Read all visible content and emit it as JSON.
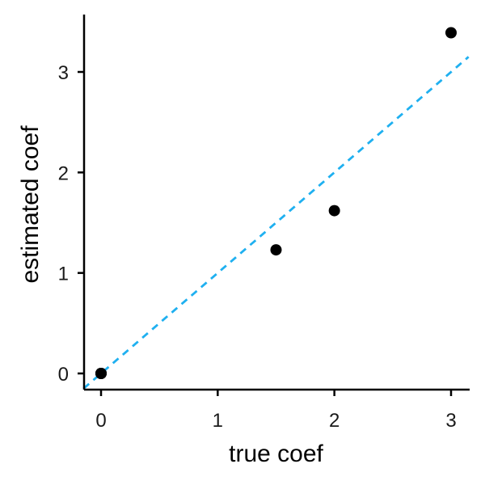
{
  "chart_data": {
    "type": "scatter",
    "title": "",
    "xlabel": "true coef",
    "ylabel": "estimated coef",
    "xlim": [
      -0.15,
      3.15
    ],
    "ylim": [
      -0.15,
      3.58
    ],
    "xticks": [
      0,
      1,
      2,
      3
    ],
    "xtick_labels": [
      "0",
      "1",
      "2",
      "3"
    ],
    "yticks": [
      0,
      1,
      2,
      3
    ],
    "ytick_labels": [
      "0",
      "1",
      "2",
      "3"
    ],
    "grid": false,
    "legend": "none",
    "points": [
      {
        "x": 0,
        "y": 0
      },
      {
        "x": 0,
        "y": 0
      },
      {
        "x": 0,
        "y": 0
      },
      {
        "x": 1.5,
        "y": 1.23
      },
      {
        "x": 2.0,
        "y": 1.62
      },
      {
        "x": 3.0,
        "y": 3.39
      }
    ],
    "reference_line": {
      "slope": 1,
      "intercept": 0,
      "style": "dashed"
    },
    "colors": {
      "points": "#000000",
      "reference_line": "#1fb0f0",
      "axes": "#000000"
    }
  }
}
